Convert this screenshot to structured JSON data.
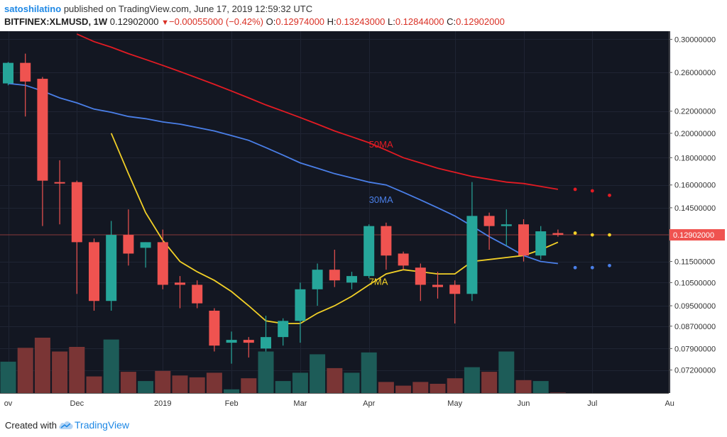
{
  "header": {
    "user": "satoshilatino",
    "published": "published on TradingView.com, June 17, 2019 12:59:32 UTC",
    "symbol": "BITFINEX:XLMUSD, 1W",
    "price": "0.12902000",
    "change_arrow": "▼",
    "change": "−0.00055000 (−0.42%)",
    "o_label": "O:",
    "o_val": "0.12974000",
    "h_label": "H:",
    "h_val": "0.13243000",
    "l_label": "L:",
    "l_val": "0.12844000",
    "c_label": "C:",
    "c_val": "0.12902000"
  },
  "footer": {
    "created": "Created with",
    "brand": "TradingView",
    "logo_icon": "tradingview-cloud-icon"
  },
  "colors": {
    "background": "#131722",
    "up": "#26a69a",
    "down": "#ef5350",
    "vol_up": "#1d5c58",
    "vol_down": "#7a3535",
    "ma7": "#f2d027",
    "ma30": "#4a7fe8",
    "ma50": "#e31b23",
    "price_line": "#8a3a3a",
    "last_price_badge": "#ef5350"
  },
  "chart_data": {
    "type": "candlestick",
    "scale": "log",
    "ylim": [
      0.066,
      0.305
    ],
    "y_ticks": [
      "0.30000000",
      "0.26000000",
      "0.22000000",
      "0.20000000",
      "0.18000000",
      "0.16000000",
      "0.14500000",
      "0.11500000",
      "0.10500000",
      "0.09500000",
      "0.08700000",
      "0.07900000",
      "0.07200000"
    ],
    "last_price_label": "0.12902000",
    "last_price": 0.12902,
    "x_labels": [
      {
        "label": "ov",
        "i": 0
      },
      {
        "label": "Dec",
        "i": 4
      },
      {
        "label": "2019",
        "i": 9
      },
      {
        "label": "Feb",
        "i": 13
      },
      {
        "label": "Mar",
        "i": 17
      },
      {
        "label": "Apr",
        "i": 21
      },
      {
        "label": "May",
        "i": 26
      },
      {
        "label": "Jun",
        "i": 30
      },
      {
        "label": "Jul",
        "i": 34
      },
      {
        "label": "Au",
        "i": 38.5
      }
    ],
    "candles": [
      {
        "o": 0.248,
        "h": 0.272,
        "l": 0.246,
        "c": 0.271
      },
      {
        "o": 0.271,
        "h": 0.282,
        "l": 0.215,
        "c": 0.25
      },
      {
        "o": 0.253,
        "h": 0.255,
        "l": 0.134,
        "c": 0.163
      },
      {
        "o": 0.162,
        "h": 0.178,
        "l": 0.135,
        "c": 0.161
      },
      {
        "o": 0.162,
        "h": 0.163,
        "l": 0.1,
        "c": 0.125
      },
      {
        "o": 0.125,
        "h": 0.127,
        "l": 0.093,
        "c": 0.097
      },
      {
        "o": 0.097,
        "h": 0.137,
        "l": 0.093,
        "c": 0.129
      },
      {
        "o": 0.129,
        "h": 0.144,
        "l": 0.113,
        "c": 0.119
      },
      {
        "o": 0.122,
        "h": 0.125,
        "l": 0.112,
        "c": 0.125
      },
      {
        "o": 0.125,
        "h": 0.132,
        "l": 0.102,
        "c": 0.104
      },
      {
        "o": 0.105,
        "h": 0.108,
        "l": 0.094,
        "c": 0.104
      },
      {
        "o": 0.104,
        "h": 0.106,
        "l": 0.094,
        "c": 0.096
      },
      {
        "o": 0.093,
        "h": 0.094,
        "l": 0.078,
        "c": 0.08
      },
      {
        "o": 0.081,
        "h": 0.085,
        "l": 0.074,
        "c": 0.082
      },
      {
        "o": 0.082,
        "h": 0.083,
        "l": 0.076,
        "c": 0.081
      },
      {
        "o": 0.079,
        "h": 0.091,
        "l": 0.078,
        "c": 0.083
      },
      {
        "o": 0.083,
        "h": 0.09,
        "l": 0.08,
        "c": 0.089
      },
      {
        "o": 0.089,
        "h": 0.105,
        "l": 0.081,
        "c": 0.102
      },
      {
        "o": 0.102,
        "h": 0.114,
        "l": 0.095,
        "c": 0.111
      },
      {
        "o": 0.111,
        "h": 0.121,
        "l": 0.103,
        "c": 0.106
      },
      {
        "o": 0.105,
        "h": 0.11,
        "l": 0.102,
        "c": 0.108
      },
      {
        "o": 0.108,
        "h": 0.135,
        "l": 0.107,
        "c": 0.134
      },
      {
        "o": 0.134,
        "h": 0.136,
        "l": 0.111,
        "c": 0.118
      },
      {
        "o": 0.119,
        "h": 0.12,
        "l": 0.111,
        "c": 0.113
      },
      {
        "o": 0.112,
        "h": 0.114,
        "l": 0.097,
        "c": 0.104
      },
      {
        "o": 0.104,
        "h": 0.11,
        "l": 0.098,
        "c": 0.103
      },
      {
        "o": 0.104,
        "h": 0.106,
        "l": 0.088,
        "c": 0.1
      },
      {
        "o": 0.1,
        "h": 0.162,
        "l": 0.097,
        "c": 0.14
      },
      {
        "o": 0.14,
        "h": 0.142,
        "l": 0.121,
        "c": 0.134
      },
      {
        "o": 0.134,
        "h": 0.144,
        "l": 0.123,
        "c": 0.135
      },
      {
        "o": 0.135,
        "h": 0.138,
        "l": 0.115,
        "c": 0.118
      },
      {
        "o": 0.118,
        "h": 0.134,
        "l": 0.116,
        "c": 0.131
      },
      {
        "o": 0.13,
        "h": 0.132,
        "l": 0.128,
        "c": 0.129
      }
    ],
    "volume_max": 100,
    "volumes": [
      34,
      49,
      60,
      45,
      50,
      18,
      58,
      23,
      13,
      24,
      19,
      17,
      22,
      4,
      16,
      45,
      13,
      22,
      42,
      27,
      22,
      44,
      12,
      8,
      12,
      10,
      16,
      28,
      23,
      45,
      14,
      13,
      0.5
    ],
    "series": [
      {
        "name": "7MA",
        "values": [
          null,
          null,
          null,
          null,
          null,
          null,
          0.2,
          0.168,
          0.142,
          0.126,
          0.115,
          0.11,
          0.106,
          0.101,
          0.095,
          0.089,
          0.088,
          0.088,
          0.092,
          0.095,
          0.099,
          0.104,
          0.109,
          0.111,
          0.11,
          0.109,
          0.109,
          0.115,
          0.116,
          0.117,
          0.118,
          0.121,
          0.125
        ]
      },
      {
        "name": "30MA",
        "values": [
          0.248,
          0.246,
          0.24,
          0.233,
          0.228,
          0.222,
          0.219,
          0.215,
          0.213,
          0.21,
          0.208,
          0.205,
          0.202,
          0.198,
          0.194,
          0.188,
          0.182,
          0.176,
          0.172,
          0.168,
          0.165,
          0.162,
          0.16,
          0.155,
          0.15,
          0.145,
          0.14,
          0.134,
          0.128,
          0.123,
          0.118,
          0.115,
          0.114
        ]
      },
      {
        "name": "50MA",
        "values": [
          null,
          null,
          null,
          null,
          0.307,
          0.297,
          0.29,
          0.282,
          0.275,
          0.268,
          0.261,
          0.254,
          0.247,
          0.24,
          0.233,
          0.226,
          0.22,
          0.214,
          0.208,
          0.202,
          0.197,
          0.192,
          0.186,
          0.18,
          0.176,
          0.172,
          0.169,
          0.166,
          0.164,
          0.162,
          0.161,
          0.159,
          0.157
        ]
      }
    ],
    "ma_labels": [
      {
        "name": "50MA",
        "i": 21,
        "v": 0.188
      },
      {
        "name": "30MA",
        "i": 21,
        "v": 0.148
      },
      {
        "name": "7MA",
        "i": 21,
        "v": 0.104
      }
    ],
    "projections": [
      {
        "series": "50MA",
        "points": [
          [
            33,
            0.157
          ],
          [
            34,
            0.156
          ],
          [
            35,
            0.153
          ]
        ]
      },
      {
        "series": "30MA",
        "points": [
          [
            33,
            0.112
          ],
          [
            34,
            0.112
          ],
          [
            35,
            0.113
          ]
        ]
      },
      {
        "series": "7MA",
        "points": [
          [
            33,
            0.13
          ],
          [
            34,
            0.129
          ],
          [
            35,
            0.129
          ]
        ]
      }
    ]
  }
}
